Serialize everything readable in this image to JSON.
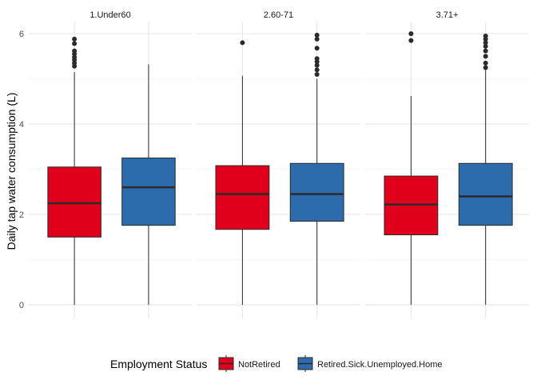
{
  "chart_data": {
    "type": "boxplot",
    "ylabel": "Daily tap water consumption (L)",
    "ylim": [
      -0.3,
      6.25
    ],
    "yticks": [
      0,
      2,
      4,
      6
    ],
    "grid": true,
    "legend": {
      "title": "Employment Status",
      "position": "bottom",
      "entries": [
        {
          "name": "NotRetired",
          "color": "#E0001B"
        },
        {
          "name": "Retired.Sick.Unemployed.Home",
          "color": "#2C6BAC"
        }
      ]
    },
    "facets": [
      {
        "label": "1.Under60",
        "boxes": [
          {
            "series": "NotRetired",
            "min": 0,
            "q1": 1.5,
            "median": 2.25,
            "q3": 3.05,
            "max": 5.15,
            "outliers": [
              5.28,
              5.35,
              5.42,
              5.48,
              5.55,
              5.62,
              5.78,
              5.88
            ]
          },
          {
            "series": "Retired.Sick.Unemployed.Home",
            "min": 0,
            "q1": 1.76,
            "median": 2.6,
            "q3": 3.25,
            "max": 5.32,
            "outliers": []
          }
        ]
      },
      {
        "label": "2.60-71",
        "boxes": [
          {
            "series": "NotRetired",
            "min": 0,
            "q1": 1.67,
            "median": 2.45,
            "q3": 3.08,
            "max": 5.07,
            "outliers": [
              5.8
            ]
          },
          {
            "series": "Retired.Sick.Unemployed.Home",
            "min": 0,
            "q1": 1.85,
            "median": 2.45,
            "q3": 3.13,
            "max": 5.0,
            "outliers": [
              5.1,
              5.2,
              5.3,
              5.38,
              5.45,
              5.68,
              5.88,
              5.97
            ]
          }
        ]
      },
      {
        "label": "3.71+",
        "boxes": [
          {
            "series": "NotRetired",
            "min": 0,
            "q1": 1.55,
            "median": 2.22,
            "q3": 2.85,
            "max": 4.62,
            "outliers": [
              5.85,
              6.0
            ]
          },
          {
            "series": "Retired.Sick.Unemployed.Home",
            "min": 0,
            "q1": 1.76,
            "median": 2.4,
            "q3": 3.13,
            "max": 5.2,
            "outliers": [
              5.25,
              5.35,
              5.5,
              5.62,
              5.72,
              5.8,
              5.88,
              5.95
            ]
          }
        ]
      }
    ]
  }
}
